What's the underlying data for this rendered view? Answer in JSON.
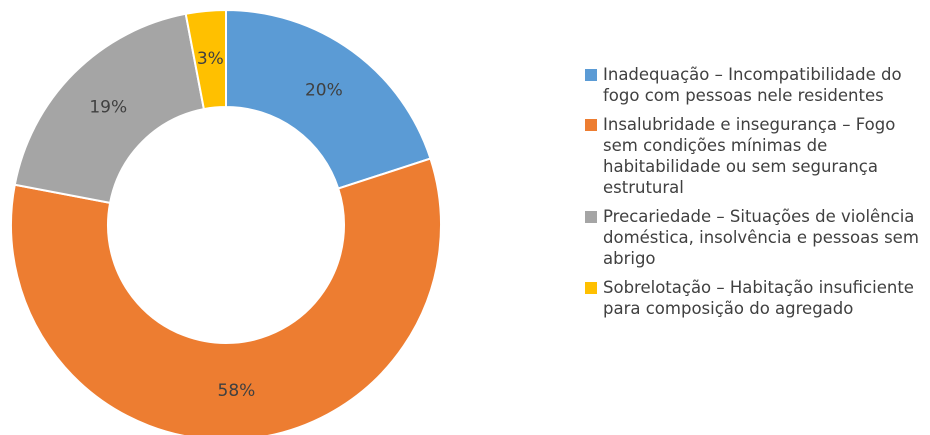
{
  "chart_data": {
    "type": "donut",
    "series": [
      {
        "names": [
          "Inadequação – Incompatibilidade do fogo com pessoas nele residentes",
          "Insalubridade e insegurança – Fogo sem condições mínimas de habitabilidade ou sem segurança estrutural",
          "Precariedade – Situações de violência doméstica, insolvência e pessoas sem abrigo",
          "Sobrelotação – Habitação insuficiente para composição do agregado"
        ],
        "values": [
          20,
          58,
          19,
          3
        ],
        "value_labels": [
          "20%",
          "58%",
          "19%",
          "3%"
        ],
        "colors": [
          "#5b9bd5",
          "#ed7d31",
          "#a5a5a5",
          "#ffc000"
        ]
      }
    ],
    "legend": "right"
  }
}
